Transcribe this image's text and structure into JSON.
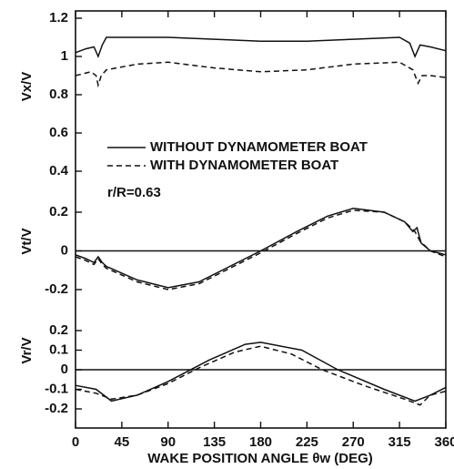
{
  "chart_data": [
    {
      "type": "line",
      "ylabel": "Vx/V",
      "ylim": [
        0.4,
        1.2
      ],
      "yticks": [
        0.4,
        0.6,
        0.8,
        1.0,
        1.2
      ],
      "annotation": "r/R=0.63",
      "series": [
        {
          "name": "WITHOUT DYNAMOMETER BOAT",
          "color": "#111111",
          "style": "solid",
          "x": [
            0,
            10,
            18,
            22,
            26,
            30,
            60,
            90,
            135,
            180,
            225,
            270,
            315,
            325,
            330,
            335,
            345,
            360
          ],
          "values": [
            1.02,
            1.04,
            1.05,
            1.0,
            1.06,
            1.1,
            1.1,
            1.1,
            1.09,
            1.08,
            1.08,
            1.09,
            1.1,
            1.07,
            1.0,
            1.06,
            1.05,
            1.03
          ]
        },
        {
          "name": "WITH DYNAMOMETER BOAT",
          "color": "#111111",
          "style": "dashed",
          "x": [
            0,
            15,
            20,
            22,
            25,
            30,
            60,
            90,
            135,
            180,
            225,
            270,
            315,
            328,
            333,
            337,
            345,
            360
          ],
          "values": [
            0.9,
            0.92,
            0.9,
            0.85,
            0.9,
            0.93,
            0.96,
            0.97,
            0.94,
            0.92,
            0.93,
            0.96,
            0.97,
            0.93,
            0.86,
            0.9,
            0.9,
            0.89
          ]
        }
      ]
    },
    {
      "type": "line",
      "ylabel": "Vt/V",
      "ylim": [
        -0.2,
        0.2
      ],
      "yticks": [
        -0.2,
        0,
        0.2
      ],
      "series": [
        {
          "color": "#111111",
          "style": "solid",
          "x": [
            0,
            10,
            18,
            22,
            26,
            30,
            60,
            90,
            120,
            150,
            180,
            215,
            245,
            270,
            300,
            320,
            328,
            332,
            336,
            345,
            360
          ],
          "values": [
            -0.02,
            -0.04,
            -0.06,
            -0.03,
            -0.06,
            -0.08,
            -0.15,
            -0.19,
            -0.16,
            -0.08,
            0.0,
            0.1,
            0.18,
            0.22,
            0.2,
            0.15,
            0.1,
            0.12,
            0.04,
            0.0,
            -0.02
          ]
        },
        {
          "color": "#111111",
          "style": "dashed",
          "x": [
            0,
            10,
            18,
            22,
            26,
            30,
            60,
            90,
            120,
            150,
            180,
            215,
            245,
            270,
            300,
            320,
            330,
            335,
            345,
            360
          ],
          "values": [
            -0.03,
            -0.05,
            -0.07,
            -0.04,
            -0.07,
            -0.09,
            -0.16,
            -0.2,
            -0.17,
            -0.09,
            -0.01,
            0.09,
            0.17,
            0.21,
            0.2,
            0.15,
            0.1,
            0.05,
            0.0,
            -0.03
          ]
        }
      ]
    },
    {
      "type": "line",
      "ylabel": "Vr/V",
      "ylim": [
        -0.2,
        0.2
      ],
      "yticks": [
        -0.2,
        -0.1,
        0,
        0.1,
        0.2
      ],
      "xlabel": "WAKE POSITION ANGLE θw (DEG)",
      "xlim": [
        0,
        360
      ],
      "xticks": [
        0,
        45,
        90,
        135,
        180,
        225,
        270,
        315,
        360
      ],
      "series": [
        {
          "color": "#111111",
          "style": "solid",
          "x": [
            0,
            20,
            35,
            60,
            90,
            130,
            165,
            180,
            220,
            255,
            300,
            330,
            345,
            360
          ],
          "values": [
            -0.08,
            -0.1,
            -0.16,
            -0.13,
            -0.06,
            0.05,
            0.13,
            0.14,
            0.1,
            0.0,
            -0.1,
            -0.16,
            -0.13,
            -0.09
          ]
        },
        {
          "color": "#111111",
          "style": "dashed",
          "x": [
            0,
            20,
            35,
            60,
            90,
            120,
            155,
            180,
            210,
            240,
            280,
            320,
            335,
            345,
            360
          ],
          "values": [
            -0.1,
            -0.12,
            -0.15,
            -0.13,
            -0.07,
            0.01,
            0.09,
            0.12,
            0.08,
            0.0,
            -0.08,
            -0.15,
            -0.18,
            -0.13,
            -0.11
          ]
        }
      ]
    }
  ]
}
